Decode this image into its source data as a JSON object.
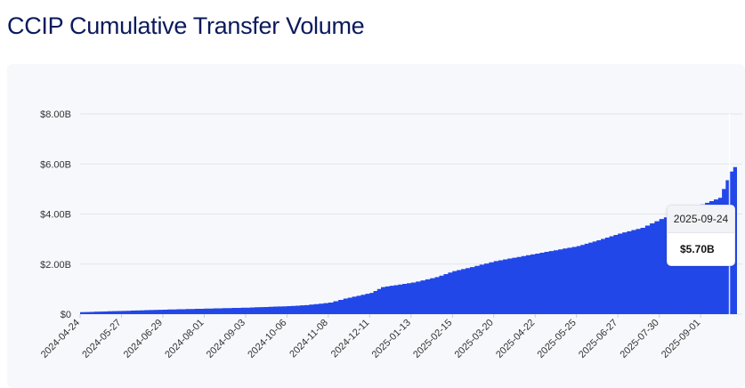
{
  "page": {
    "title": "CCIP Cumulative Transfer Volume"
  },
  "tooltip": {
    "date": "2025-09-24",
    "value": "$5.70B"
  },
  "colors": {
    "area_fill": "#2247e9",
    "grid": "#e3e5ea",
    "axis_text": "#333333",
    "title": "#0b1a5c"
  },
  "chart_data": {
    "type": "area",
    "title": "CCIP Cumulative Transfer Volume",
    "xlabel": "",
    "ylabel": "",
    "ylim": [
      0,
      8.0
    ],
    "y_unit": "billions USD",
    "grid": true,
    "legend": "none",
    "x_start": "2024-04-24",
    "x_end": "2025-09-30",
    "x_ticks": [
      "2024-04-24",
      "2024-05-27",
      "2024-06-29",
      "2024-08-01",
      "2024-09-03",
      "2024-10-06",
      "2024-11-08",
      "2024-12-11",
      "2025-01-13",
      "2025-02-15",
      "2025-03-20",
      "2025-04-22",
      "2025-05-25",
      "2025-06-27",
      "2025-07-30",
      "2025-09-01"
    ],
    "y_ticks": [
      {
        "value": 0,
        "label": "$0"
      },
      {
        "value": 2,
        "label": "$2.00B"
      },
      {
        "value": 4,
        "label": "$4.00B"
      },
      {
        "value": 6,
        "label": "$6.00B"
      },
      {
        "value": 8,
        "label": "$8.00B"
      }
    ],
    "series": [
      {
        "x": [
          "2024-04-24",
          "2024-05-27",
          "2024-06-29",
          "2024-08-01",
          "2024-09-03",
          "2024-10-06",
          "2024-10-20",
          "2024-11-08",
          "2024-11-20",
          "2024-12-11",
          "2024-12-20",
          "2025-01-13",
          "2025-02-01",
          "2025-02-15",
          "2025-03-01",
          "2025-03-20",
          "2025-04-22",
          "2025-05-25",
          "2025-06-10",
          "2025-06-27",
          "2025-07-15",
          "2025-07-30",
          "2025-09-01",
          "2025-09-15",
          "2025-09-24",
          "2025-09-30"
        ],
        "y": [
          0.08,
          0.13,
          0.18,
          0.22,
          0.26,
          0.32,
          0.36,
          0.46,
          0.62,
          0.85,
          1.08,
          1.26,
          1.48,
          1.72,
          1.88,
          2.12,
          2.42,
          2.72,
          2.95,
          3.22,
          3.45,
          3.8,
          4.38,
          4.65,
          5.7,
          6.05
        ]
      }
    ]
  }
}
